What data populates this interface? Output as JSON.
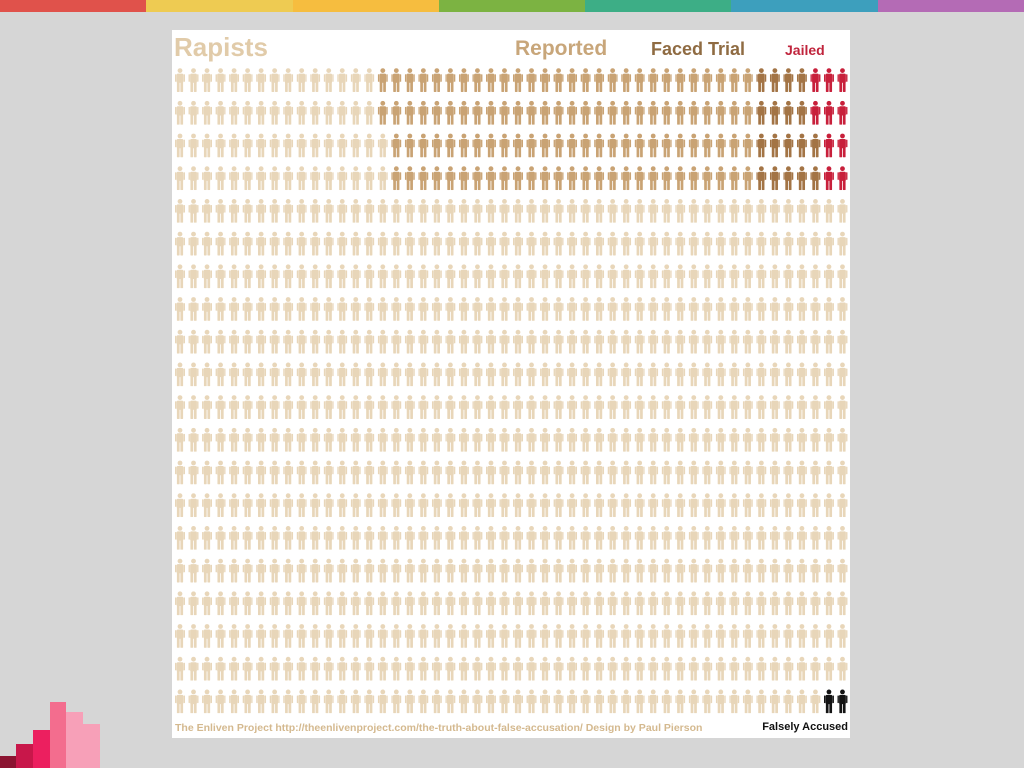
{
  "colors": {
    "background": "#d6d6d6",
    "stripe": [
      "#e0524b",
      "#eecb52",
      "#f6bd3f",
      "#7cb342",
      "#3dae86",
      "#3d9fbd",
      "#b46bb5"
    ],
    "logo": [
      "#8b1431",
      "#c8174a",
      "#ec1f5f",
      "#f36d8e",
      "#f7a0b8"
    ],
    "rapists": "#e8d6b9",
    "reported": "#c9a374",
    "faced_trial": "#a37445",
    "jailed": "#c8203b",
    "falsely_accused": "#141414"
  },
  "chart_data": {
    "type": "pictograph",
    "title": "",
    "unit": "person icon",
    "grid": {
      "columns": 50,
      "rows": 20,
      "total": 1000
    },
    "categories": [
      {
        "key": "rapists",
        "label": "Rapists",
        "count": 1000
      },
      {
        "key": "reported",
        "label": "Reported",
        "count": 138
      },
      {
        "key": "faced_trial",
        "label": "Faced Trial",
        "count": 28
      },
      {
        "key": "jailed",
        "label": "Jailed",
        "count": 10
      },
      {
        "key": "falsely_accused",
        "label": "Falsely Accused",
        "count": 2
      }
    ],
    "credit": "The Enliven Project http://theenlivenproject.com/the-truth-about-false-accusation/ Design by Paul Pierson"
  }
}
